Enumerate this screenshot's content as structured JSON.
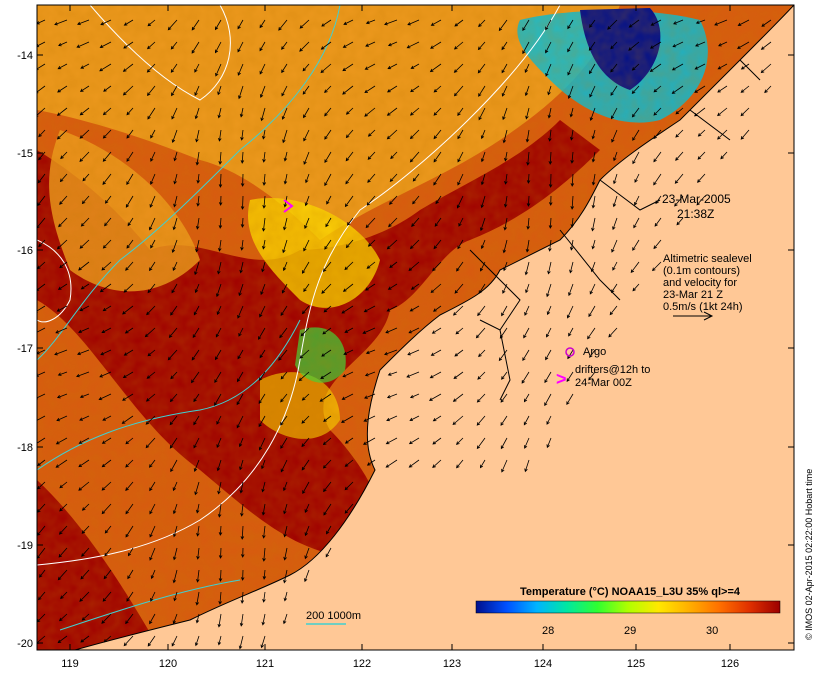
{
  "map": {
    "x_ticks": [
      "119",
      "120",
      "121",
      "122",
      "123",
      "124",
      "125",
      "126"
    ],
    "y_ticks": [
      "-14",
      "-15",
      "-16",
      "-17",
      "-18",
      "-19",
      "-20"
    ],
    "date": "23-Mar-2005",
    "time": "21:38Z",
    "legend_lines": [
      "Altimetric sealevel",
      "(0.1m contours)",
      "and velocity for",
      "23-Mar 21 Z",
      "0.5m/s (1kt 24h)"
    ],
    "argo_label": "Argo",
    "drifter_symbol": ">",
    "drifter_lines": [
      "drifters@12h to",
      "24-Mar 00Z"
    ],
    "depth_label": "200  1000m",
    "colorbar": {
      "title": "Temperature (°C) NOAA15_L3U 35% ql>=4",
      "ticks": [
        "28",
        "29",
        "30"
      ],
      "colors": [
        "#000f8c",
        "#0050ff",
        "#00b4ff",
        "#00e8a0",
        "#30ff30",
        "#b0ff00",
        "#ffe800",
        "#ffb000",
        "#ff7000",
        "#e03000",
        "#9c0000"
      ]
    },
    "credit": "© IMOS 02-Apr-2015 02:22:00 Hobart time",
    "land_color": "#ffc896",
    "ocean_colors": {
      "warm": "#a00000",
      "mid": "#d85a10",
      "cool": "#f0a020",
      "cold": "#ffe000"
    }
  }
}
